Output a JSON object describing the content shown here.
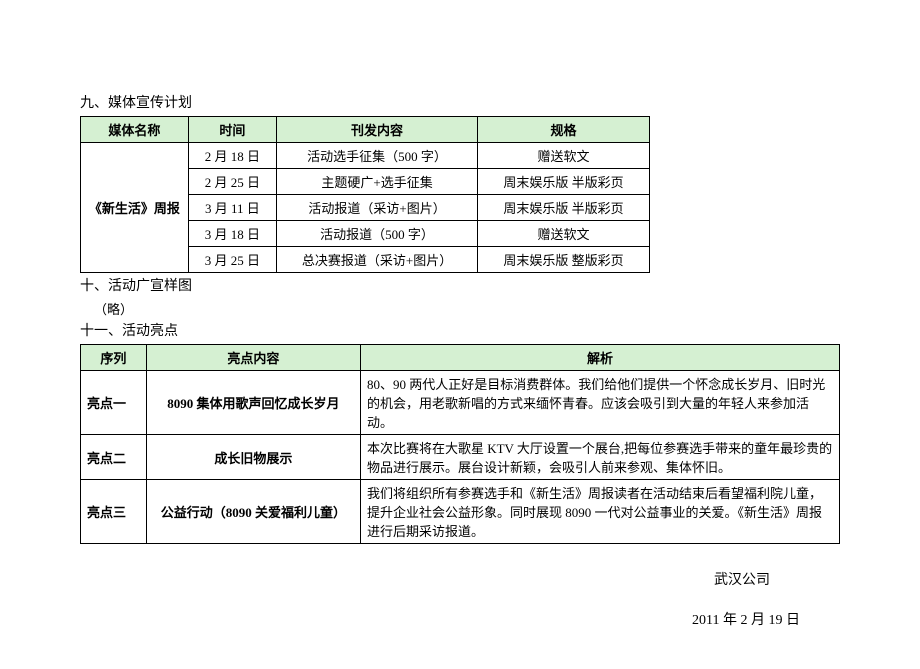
{
  "section9": {
    "title": "九、媒体宣传计划",
    "headers": [
      "媒体名称",
      "时间",
      "刊发内容",
      "规格"
    ],
    "mediaName": "《新生活》周报",
    "rows": [
      {
        "date": "2 月 18 日",
        "content": "活动选手征集（500 字）",
        "spec": "赠送软文"
      },
      {
        "date": "2 月 25 日",
        "content": "主题硬广+选手征集",
        "spec": "周末娱乐版 半版彩页"
      },
      {
        "date": "3 月 11 日",
        "content": "活动报道（采访+图片）",
        "spec": "周末娱乐版 半版彩页"
      },
      {
        "date": "3 月 18 日",
        "content": "活动报道（500 字）",
        "spec": "赠送软文"
      },
      {
        "date": "3 月 25 日",
        "content": "总决赛报道（采访+图片）",
        "spec": "周末娱乐版 整版彩页"
      }
    ]
  },
  "section10": {
    "title": "十、活动广宣样图",
    "note": "（略）"
  },
  "section11": {
    "title": "十一、活动亮点",
    "headers": [
      "序列",
      "亮点内容",
      "解析"
    ],
    "rows": [
      {
        "seq": "亮点一",
        "content": "8090 集体用歌声回忆成长岁月",
        "desc": "80、90 两代人正好是目标消费群体。我们给他们提供一个怀念成长岁月、旧时光的机会，用老歌新唱的方式来缅怀青春。应该会吸引到大量的年轻人来参加活动。"
      },
      {
        "seq": "亮点二",
        "content": "成长旧物展示",
        "desc": "本次比赛将在大歌星 KTV 大厅设置一个展台,把每位参赛选手带来的童年最珍贵的物品进行展示。展台设计新颖，会吸引人前来参观、集体怀旧。"
      },
      {
        "seq": "亮点三",
        "content": "公益行动（8090 关爱福利儿童）",
        "desc": "我们将组织所有参赛选手和《新生活》周报读者在活动结束后看望福利院儿童，提升企业社会公益形象。同时展现 8090 一代对公益事业的关爱。《新生活》周报进行后期采访报道。"
      }
    ]
  },
  "footer": {
    "company": "武汉公司",
    "date": "2011 年 2 月 19 日"
  }
}
